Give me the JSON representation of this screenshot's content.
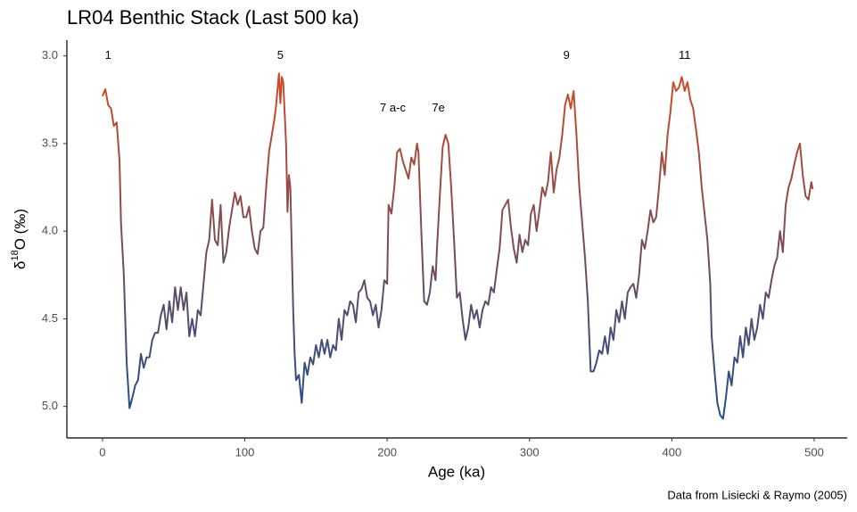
{
  "chart_data": {
    "type": "line",
    "title": "LR04 Benthic Stack (Last 500 ka)",
    "x_label": "Age (ka)",
    "y_label": {
      "prefix": "δ",
      "sup": "18",
      "suffix": "O (‰)"
    },
    "caption": "Data from Lisiecki & Raymo (2005)",
    "xlim": [
      -25,
      523.2
    ],
    "xticks": [
      0,
      100,
      200,
      300,
      400,
      500
    ],
    "ylim": [
      2.91,
      5.18
    ],
    "y_reversed": true,
    "yticks": [
      {
        "value": 3,
        "label": "3.0"
      },
      3.5,
      {
        "value": 4,
        "label": "4.0"
      },
      4.5,
      {
        "value": 5,
        "label": "5.0"
      }
    ],
    "grid": false,
    "colors": [
      "#d24b26",
      "#1f4e8c"
    ],
    "annotations": [
      {
        "text": "1",
        "x": 4,
        "y": 3.0
      },
      {
        "text": "5",
        "x": 125,
        "y": 3.0
      },
      {
        "text": "7 a-c",
        "x": 204,
        "y": 3.3
      },
      {
        "text": "7e",
        "x": 236,
        "y": 3.3
      },
      {
        "text": "9",
        "x": 326,
        "y": 3.0
      },
      {
        "text": "11",
        "x": 409,
        "y": 3.0
      }
    ],
    "x": [
      0,
      2,
      4,
      6,
      8,
      10,
      12,
      13,
      15,
      17,
      19,
      21,
      23,
      25,
      27,
      29,
      31,
      33,
      35,
      37,
      39,
      41,
      43,
      45,
      47,
      49,
      51,
      53,
      55,
      57,
      59,
      61,
      63,
      65,
      67,
      69,
      71,
      73,
      75,
      77,
      79,
      81,
      83,
      85,
      87,
      89,
      91,
      93,
      95,
      97,
      99,
      101,
      103,
      105,
      107,
      109,
      111,
      113,
      115,
      117,
      119,
      121,
      122,
      124,
      125,
      126,
      127,
      129,
      130,
      131,
      132,
      134,
      135,
      136,
      138,
      140,
      142,
      144,
      146,
      148,
      150,
      152,
      154,
      156,
      158,
      160,
      162,
      164,
      166,
      168,
      170,
      172,
      174,
      176,
      178,
      180,
      182,
      184,
      186,
      188,
      190,
      192,
      194,
      196,
      198,
      200,
      201,
      203,
      205,
      207,
      209,
      211,
      213,
      215,
      217,
      219,
      221,
      222,
      224,
      226,
      228,
      230,
      232,
      234,
      235,
      237,
      239,
      241,
      243,
      245,
      247,
      249,
      251,
      253,
      255,
      257,
      259,
      261,
      263,
      265,
      267,
      269,
      271,
      273,
      275,
      277,
      279,
      281,
      283,
      285,
      287,
      289,
      291,
      293,
      295,
      297,
      299,
      301,
      303,
      305,
      307,
      309,
      311,
      313,
      315,
      317,
      319,
      321,
      323,
      325,
      327,
      329,
      331,
      333,
      335,
      337,
      339,
      341,
      343,
      345,
      347,
      349,
      351,
      353,
      355,
      357,
      359,
      361,
      363,
      365,
      367,
      369,
      371,
      373,
      375,
      377,
      379,
      381,
      383,
      385,
      387,
      389,
      391,
      393,
      395,
      397,
      399,
      401,
      403,
      405,
      407,
      409,
      411,
      413,
      415,
      417,
      419,
      421,
      423,
      425,
      427,
      428,
      430,
      432,
      434,
      436,
      438,
      440,
      442,
      444,
      446,
      448,
      450,
      452,
      454,
      456,
      458,
      460,
      462,
      464,
      466,
      468,
      470,
      472,
      474,
      476,
      478,
      480,
      482,
      484,
      486,
      488,
      490,
      492,
      494,
      496,
      498,
      499
    ],
    "values": [
      3.23,
      3.19,
      3.28,
      3.3,
      3.4,
      3.38,
      3.6,
      3.95,
      4.25,
      4.75,
      5.01,
      4.95,
      4.88,
      4.85,
      4.7,
      4.78,
      4.72,
      4.72,
      4.62,
      4.58,
      4.58,
      4.48,
      4.42,
      4.56,
      4.4,
      4.52,
      4.32,
      4.45,
      4.32,
      4.45,
      4.35,
      4.6,
      4.5,
      4.6,
      4.45,
      4.48,
      4.3,
      4.12,
      4.05,
      3.82,
      4.05,
      4.08,
      3.85,
      4.18,
      4.12,
      3.98,
      3.88,
      3.78,
      3.85,
      3.8,
      3.92,
      3.92,
      3.86,
      4.0,
      4.1,
      4.13,
      4.0,
      3.98,
      3.75,
      3.55,
      3.45,
      3.35,
      3.28,
      3.1,
      3.27,
      3.12,
      3.15,
      3.5,
      3.89,
      3.68,
      3.75,
      4.45,
      4.7,
      4.85,
      4.82,
      4.98,
      4.75,
      4.82,
      4.72,
      4.76,
      4.65,
      4.72,
      4.62,
      4.7,
      4.62,
      4.72,
      4.65,
      4.68,
      4.5,
      4.62,
      4.45,
      4.48,
      4.4,
      4.42,
      4.52,
      4.35,
      4.33,
      4.28,
      4.38,
      4.4,
      4.48,
      4.42,
      4.55,
      4.45,
      4.28,
      4.3,
      3.85,
      3.9,
      3.75,
      3.55,
      3.53,
      3.6,
      3.65,
      3.7,
      3.58,
      3.62,
      3.5,
      3.55,
      4.0,
      4.4,
      4.42,
      4.35,
      4.2,
      4.28,
      4.1,
      3.8,
      3.52,
      3.45,
      3.5,
      3.75,
      4.05,
      4.38,
      4.35,
      4.5,
      4.62,
      4.55,
      4.42,
      4.5,
      4.45,
      4.55,
      4.45,
      4.4,
      4.42,
      4.32,
      4.35,
      4.22,
      4.1,
      3.88,
      3.85,
      3.82,
      3.98,
      4.1,
      4.18,
      4.02,
      4.12,
      4.05,
      4.08,
      3.9,
      3.85,
      4.0,
      3.88,
      3.75,
      3.8,
      3.72,
      3.55,
      3.78,
      3.65,
      3.58,
      3.45,
      3.28,
      3.22,
      3.3,
      3.2,
      3.45,
      3.75,
      3.95,
      4.15,
      4.4,
      4.8,
      4.8,
      4.75,
      4.68,
      4.7,
      4.6,
      4.7,
      4.55,
      4.62,
      4.45,
      4.52,
      4.4,
      4.5,
      4.35,
      4.32,
      4.3,
      4.38,
      4.25,
      4.05,
      4.1,
      4.0,
      3.88,
      3.95,
      3.92,
      3.75,
      3.55,
      3.68,
      3.45,
      3.32,
      3.15,
      3.2,
      3.18,
      3.12,
      3.2,
      3.15,
      3.25,
      3.3,
      3.42,
      3.55,
      3.75,
      3.9,
      4.05,
      4.3,
      4.6,
      4.8,
      4.98,
      5.05,
      5.07,
      4.95,
      4.8,
      4.88,
      4.72,
      4.75,
      4.6,
      4.72,
      4.55,
      4.65,
      4.5,
      4.62,
      4.55,
      4.42,
      4.5,
      4.35,
      4.38,
      4.28,
      4.2,
      4.15,
      4.0,
      4.12,
      3.85,
      3.75,
      3.7,
      3.62,
      3.55,
      3.5,
      3.68,
      3.8,
      3.82,
      3.72,
      3.76
    ]
  }
}
